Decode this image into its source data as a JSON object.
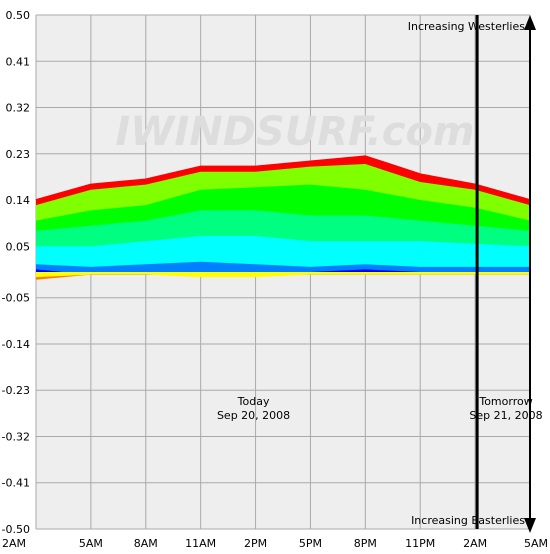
{
  "chart_data": {
    "type": "area",
    "watermark": "IWINDSURF.com",
    "y_ticks": [
      "0.50",
      "0.41",
      "0.32",
      "0.23",
      "0.14",
      "0.05",
      "-0.05",
      "-0.14",
      "-0.23",
      "-0.32",
      "-0.41",
      "-0.50"
    ],
    "y_tick_values": [
      0.5,
      0.41,
      0.32,
      0.23,
      0.14,
      0.05,
      -0.05,
      -0.14,
      -0.23,
      -0.32,
      -0.41,
      -0.5
    ],
    "x_ticks": [
      "2AM",
      "5AM",
      "8AM",
      "11AM",
      "2PM",
      "5PM",
      "8PM",
      "11PM",
      "2AM",
      "5AM"
    ],
    "ylim": [
      -0.5,
      0.5
    ],
    "grid": true,
    "series": [
      {
        "name": "",
        "color": "#ff0000",
        "values": [
          0.14,
          0.17,
          0.18,
          0.205,
          0.205,
          0.215,
          0.225,
          0.19,
          0.17,
          0.14
        ]
      },
      {
        "name": "",
        "color": "#7fff00",
        "values": [
          0.13,
          0.16,
          0.17,
          0.195,
          0.195,
          0.205,
          0.21,
          0.175,
          0.16,
          0.13
        ]
      },
      {
        "name": "",
        "color": "#00ff00",
        "values": [
          0.1,
          0.12,
          0.13,
          0.16,
          0.165,
          0.17,
          0.16,
          0.14,
          0.125,
          0.1
        ]
      },
      {
        "name": "",
        "color": "#00ff80",
        "values": [
          0.08,
          0.09,
          0.1,
          0.12,
          0.12,
          0.11,
          0.11,
          0.1,
          0.09,
          0.08
        ]
      },
      {
        "name": "",
        "color": "#00ffff",
        "values": [
          0.05,
          0.05,
          0.06,
          0.07,
          0.07,
          0.06,
          0.06,
          0.06,
          0.055,
          0.05
        ]
      },
      {
        "name": "",
        "color": "#0080ff",
        "values": [
          0.015,
          0.01,
          0.015,
          0.02,
          0.015,
          0.01,
          0.015,
          0.01,
          0.01,
          0.01
        ]
      },
      {
        "name": "",
        "color": "#0000ff",
        "values": [
          0.005,
          -0.005,
          -0.005,
          -0.005,
          -0.005,
          0.0,
          0.005,
          0.0,
          0.0,
          0.0
        ]
      },
      {
        "name": "",
        "color": "#8000ff",
        "values": [
          0.0,
          -0.005,
          -0.005,
          -0.005,
          -0.005,
          -0.005,
          -0.005,
          -0.005,
          -0.005,
          -0.005
        ]
      }
    ],
    "lower_series": [
      {
        "name": "",
        "color": "#ff8000",
        "values": [
          -0.015,
          -0.005,
          -0.005,
          0.0,
          -0.005,
          -0.005,
          -0.005,
          -0.005,
          -0.005,
          -0.005
        ]
      },
      {
        "name": "",
        "color": "#ffff00",
        "values": [
          -0.01,
          -0.005,
          -0.005,
          -0.01,
          -0.01,
          -0.005,
          -0.005,
          -0.005,
          -0.005,
          -0.005
        ]
      }
    ],
    "day_labels": [
      {
        "line1": "Today",
        "line2": "Sep 20, 2008",
        "x_index": 4.0
      },
      {
        "line1": "Tomorrow",
        "line2": "Sep 21, 2008",
        "x_index": 8.6
      }
    ],
    "day_divider_x_index": 8,
    "direction_labels": {
      "top": "Increasing Westerlies",
      "bottom": "Increasing Easterlies"
    }
  }
}
